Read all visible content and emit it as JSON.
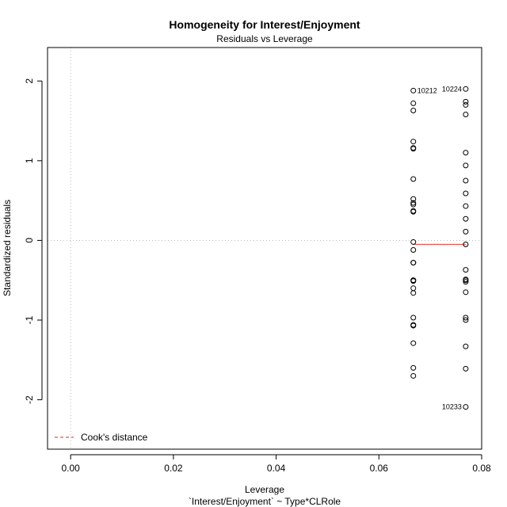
{
  "chart_data": {
    "type": "scatter",
    "title": "Homogeneity for Interest/Enjoyment",
    "subtitle": "Residuals vs Leverage",
    "xlabel": "Leverage",
    "xlabel2": "`Interest/Enjoyment` ~ Type*CLRole",
    "ylabel": "Standardized residuals",
    "xlim": [
      -0.0045,
      0.08
    ],
    "ylim": [
      -2.62,
      2.42
    ],
    "xticks": [
      "0.00",
      "0.02",
      "0.04",
      "0.06",
      "0.08"
    ],
    "xtick_values": [
      0.0,
      0.02,
      0.04,
      0.06,
      0.08
    ],
    "yticks": [
      "-2",
      "-1",
      "0",
      "1",
      "2"
    ],
    "ytick_values": [
      -2,
      -1,
      0,
      1,
      2
    ],
    "series": [
      {
        "x": 0.0667,
        "y": [
          1.88,
          1.72,
          1.63,
          1.24,
          1.16,
          1.15,
          0.77,
          0.52,
          0.47,
          0.45,
          0.37,
          0.36,
          -0.02,
          -0.12,
          -0.28,
          -0.28,
          -0.5,
          -0.51,
          -0.5,
          -0.6,
          -0.66,
          -0.97,
          -1.06,
          -1.07,
          -1.29,
          -1.6,
          -1.7
        ]
      },
      {
        "x": 0.0769,
        "y": [
          1.9,
          1.74,
          1.7,
          1.58,
          1.1,
          0.94,
          0.75,
          0.59,
          0.43,
          0.27,
          0.11,
          -0.05,
          -0.37,
          -0.49,
          -0.52,
          -0.5,
          -0.65,
          -0.97,
          -1.0,
          -1.33,
          -1.61,
          -2.09
        ]
      }
    ],
    "smoother": {
      "x": [
        0.0667,
        0.0769
      ],
      "y": [
        -0.05,
        -0.05
      ],
      "color": "#e8534a"
    },
    "annotations": [
      {
        "text": "10212",
        "x": 0.0667,
        "y": 1.88,
        "side": "right"
      },
      {
        "text": "10224",
        "x": 0.0769,
        "y": 1.9,
        "side": "left"
      },
      {
        "text": "10233",
        "x": 0.0769,
        "y": -2.09,
        "side": "left"
      }
    ],
    "legend": {
      "position": "bottom-left",
      "label": "Cook's distance",
      "color": "#e8534a",
      "style": "dashed"
    },
    "reference_lines": {
      "x": 0,
      "y": 0,
      "color": "#bbbbbb",
      "style": "dotted"
    },
    "grid": false
  }
}
